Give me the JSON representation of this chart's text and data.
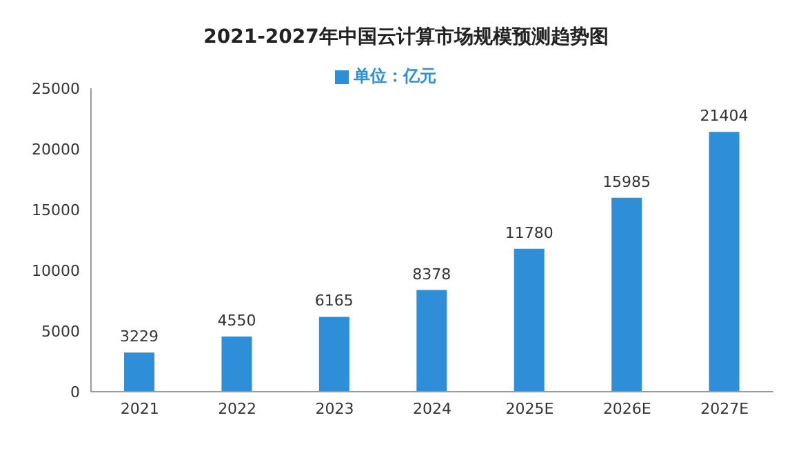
{
  "chart_data": {
    "type": "bar",
    "title": "2021-2027年中国云计算市场规模预测趋势图",
    "categories": [
      "2021",
      "2022",
      "2023",
      "2024",
      "2025E",
      "2026E",
      "2027E"
    ],
    "series": [
      {
        "name": "单位：亿元",
        "color": "#2e8fd8",
        "values": [
          3229,
          4550,
          6165,
          8378,
          11780,
          15985,
          21404
        ]
      }
    ],
    "ylim": [
      0,
      25000
    ],
    "yticks": [
      0,
      5000,
      10000,
      15000,
      20000,
      25000
    ],
    "data_labels": true,
    "legend": "top",
    "grid": false
  }
}
